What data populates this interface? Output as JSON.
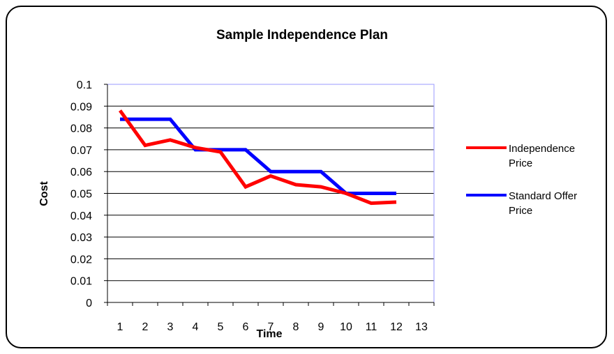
{
  "chart_data": {
    "type": "line",
    "title": "Sample Independence Plan",
    "xlabel": "Time",
    "ylabel": "Cost",
    "x_ticks": [
      "1",
      "2",
      "3",
      "4",
      "5",
      "6",
      "7",
      "8",
      "9",
      "10",
      "11",
      "12",
      "13"
    ],
    "y_ticks": [
      "0",
      "0.01",
      "0.02",
      "0.03",
      "0.04",
      "0.05",
      "0.06",
      "0.07",
      "0.08",
      "0.09",
      "0.1"
    ],
    "ylim": [
      0,
      0.1
    ],
    "grid": true,
    "legend_position": "right",
    "series": [
      {
        "name": "Independence Price",
        "name_lines": [
          "Independence",
          "Price"
        ],
        "color": "#ff0000",
        "x": [
          1,
          2,
          3,
          4,
          5,
          6,
          7,
          8,
          9,
          10,
          11,
          12
        ],
        "values": [
          0.088,
          0.072,
          0.0745,
          0.071,
          0.069,
          0.053,
          0.058,
          0.054,
          0.053,
          0.05,
          0.0455,
          0.046
        ]
      },
      {
        "name": "Standard Offer Price",
        "name_lines": [
          "Standard Offer",
          "Price"
        ],
        "color": "#0000ff",
        "x": [
          1,
          2,
          3,
          4,
          5,
          6,
          7,
          8,
          9,
          10,
          11,
          12
        ],
        "values": [
          0.084,
          0.084,
          0.084,
          0.07,
          0.07,
          0.07,
          0.06,
          0.06,
          0.06,
          0.05,
          0.05,
          0.05
        ]
      }
    ]
  }
}
